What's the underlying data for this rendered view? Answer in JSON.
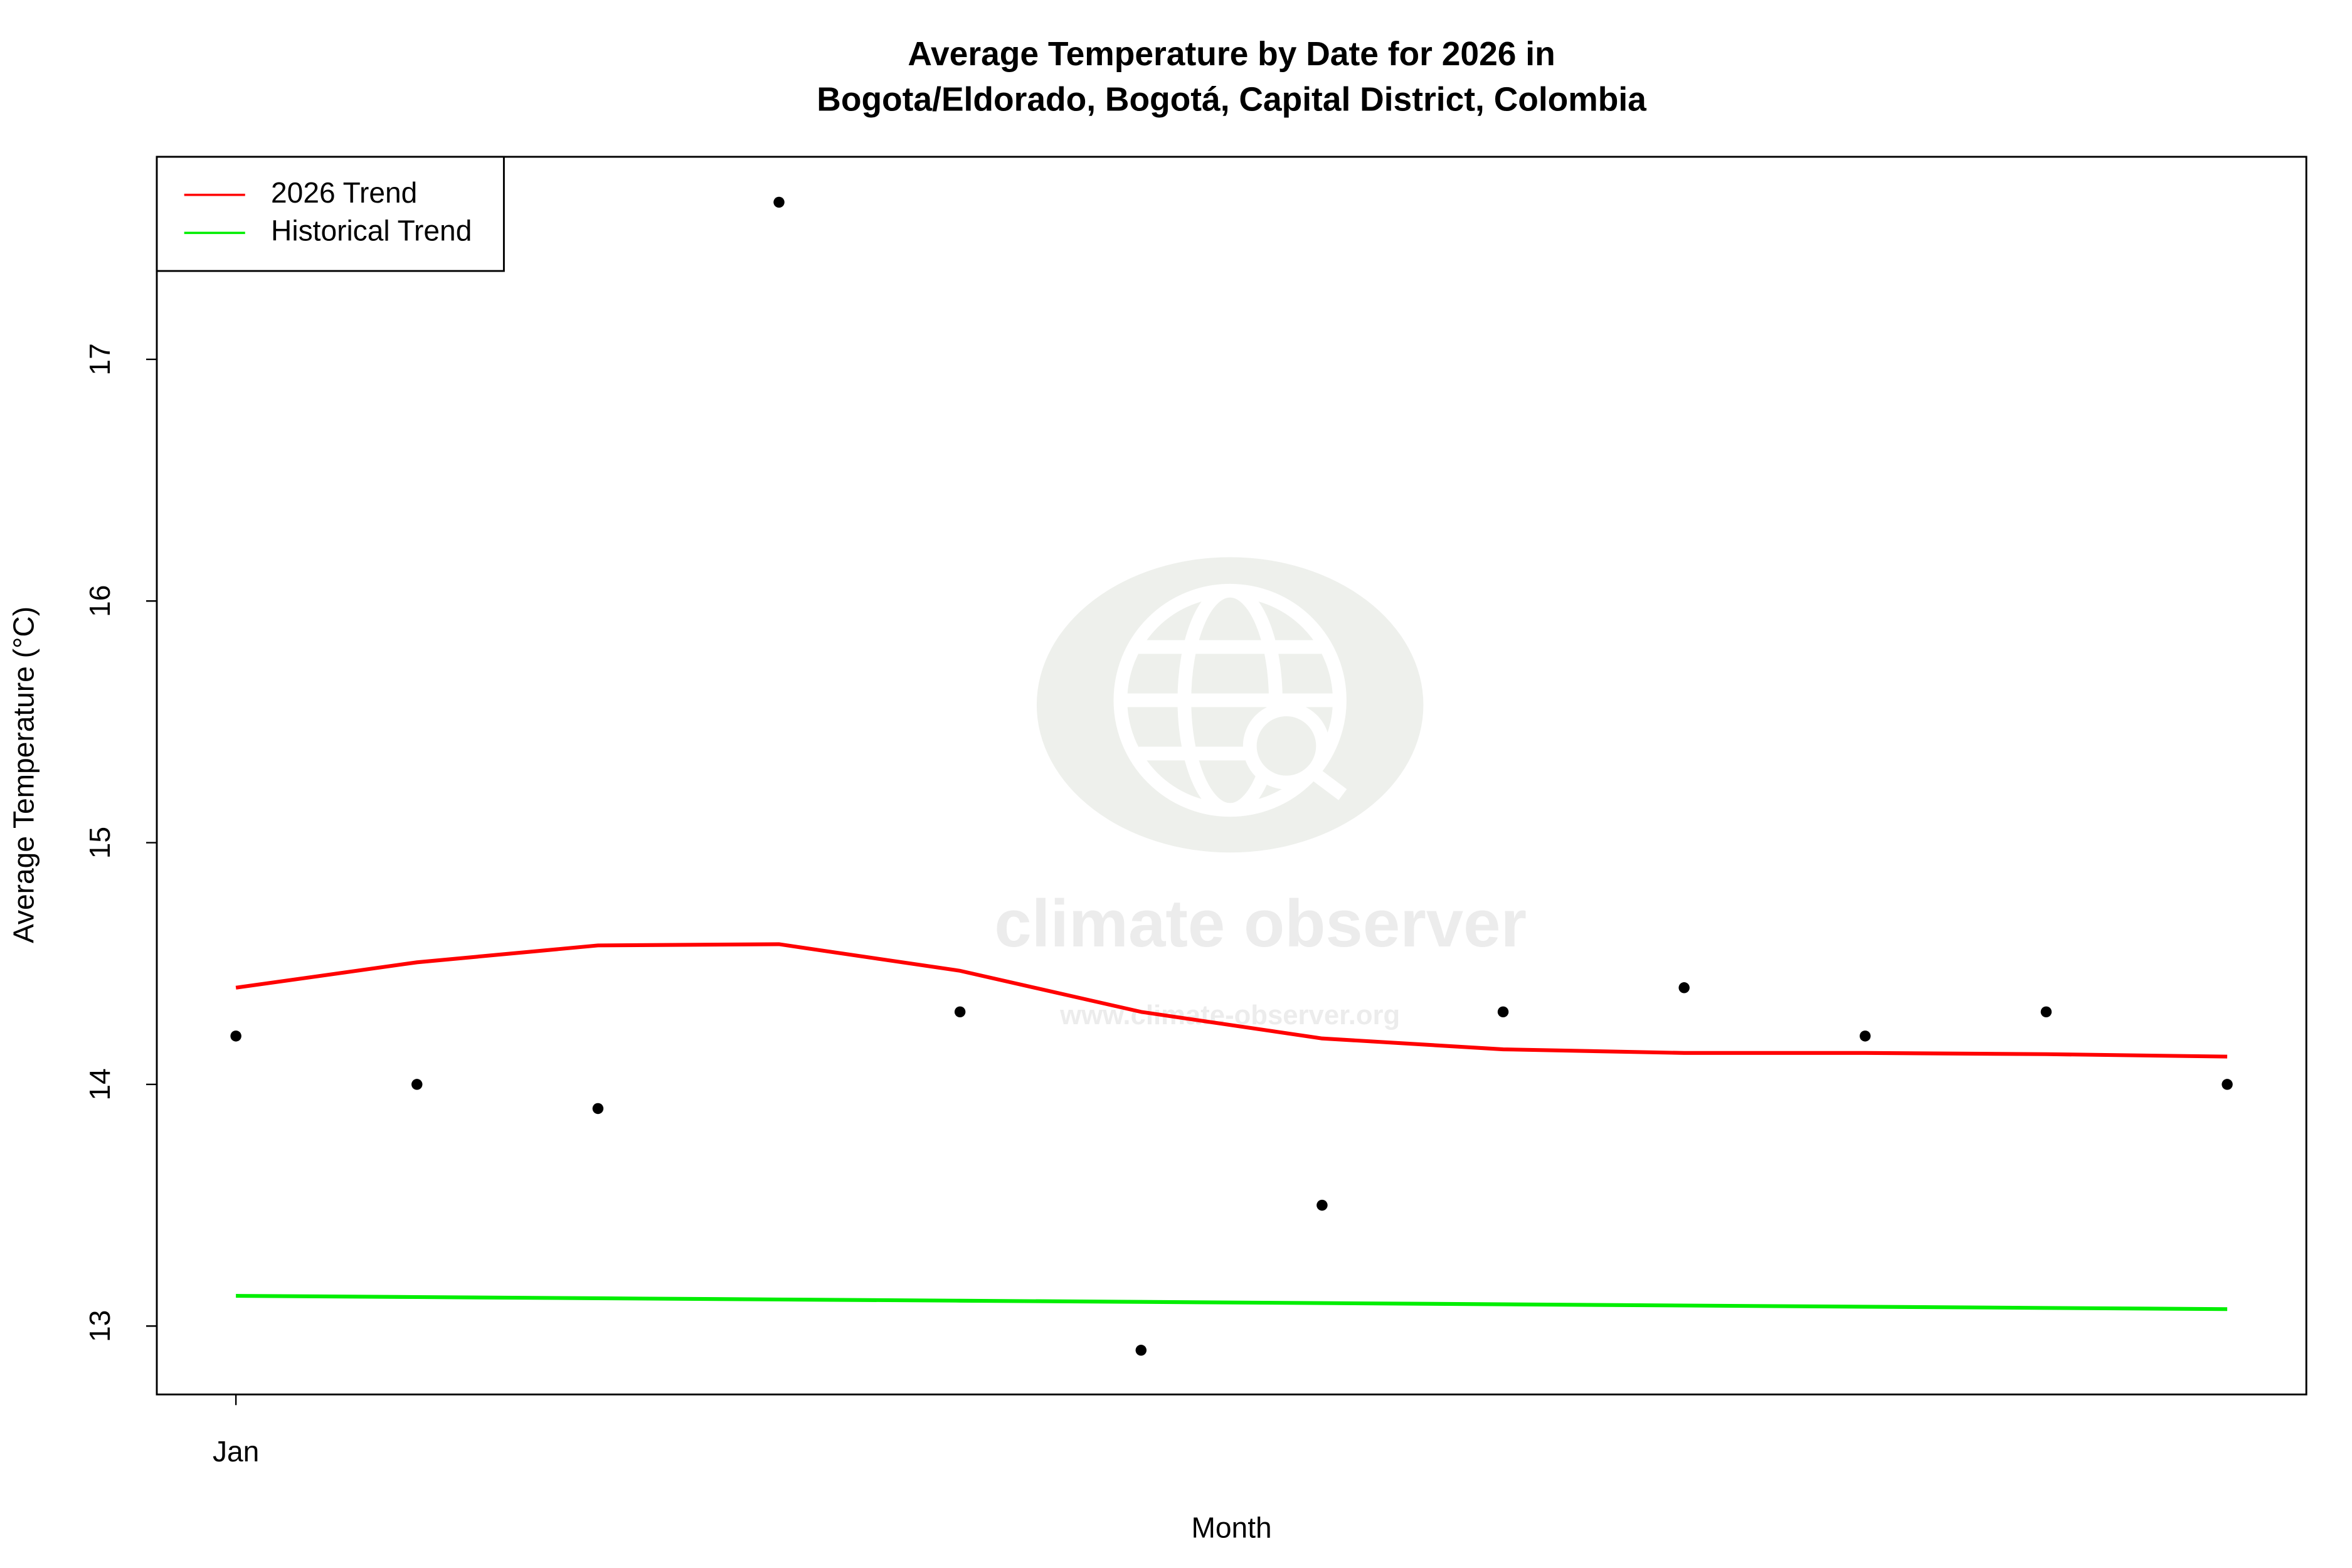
{
  "chart_data": {
    "type": "scatter",
    "title": [
      "Average Temperature by Date for 2026 in",
      "Bogota/Eldorado, Bogotá, Capital District, Colombia"
    ],
    "x_label": "Month",
    "y_label": "Average Temperature (°C)",
    "categories": [
      "Jan",
      null,
      null,
      null,
      null,
      null,
      null,
      null,
      null,
      null,
      null,
      null
    ],
    "values": [
      14.2,
      14.0,
      13.9,
      17.65,
      14.3,
      12.9,
      13.5,
      14.3,
      14.4,
      14.2,
      14.3,
      14.0
    ],
    "color": "#000000",
    "series": [
      {
        "name": "2026 Trend",
        "color": "#ff0000",
        "values": [
          14.4,
          14.505,
          14.575,
          14.58,
          14.47,
          14.3,
          14.19,
          14.145,
          14.13,
          14.13,
          14.125,
          14.115
        ]
      },
      {
        "name": "Historical Trend",
        "color": "#00ee00",
        "values": [
          13.125,
          13.12,
          13.115,
          13.11,
          13.105,
          13.1,
          13.095,
          13.09,
          13.085,
          13.08,
          13.075,
          13.07
        ]
      }
    ],
    "ylim": [
      12.717,
      17.838
    ],
    "yticks": [
      13,
      14,
      15,
      16,
      17
    ],
    "legend": "top-left",
    "watermark": {
      "name": "climate observer",
      "url": "www.climate-observer.org"
    }
  }
}
